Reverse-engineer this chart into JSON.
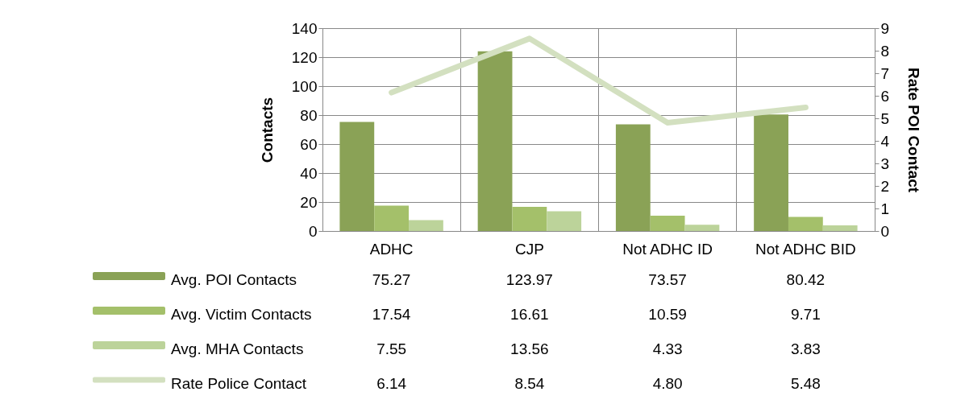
{
  "chart_data": {
    "type": "bar",
    "ylabel": "Contacts",
    "y2label": "Rate POI Contact",
    "categories": [
      "ADHC",
      "CJP",
      "Not ADHC ID",
      "Not ADHC BID"
    ],
    "series": [
      {
        "name": "Avg. POI Contacts",
        "color": "#8aa256",
        "values": [
          75.27,
          123.97,
          73.57,
          80.42
        ],
        "value_labels": [
          "75.27",
          "123.97",
          "73.57",
          "80.42"
        ]
      },
      {
        "name": "Avg. Victim Contacts",
        "color": "#a4c06a",
        "values": [
          17.54,
          16.61,
          10.59,
          9.71
        ],
        "value_labels": [
          "17.54",
          "16.61",
          "10.59",
          "9.71"
        ]
      },
      {
        "name": "Avg. MHA Contacts",
        "color": "#bcd39a",
        "values": [
          7.55,
          13.56,
          4.33,
          3.83
        ],
        "value_labels": [
          "7.55",
          "13.56",
          "4.33",
          "3.83"
        ]
      },
      {
        "name": "Rate Police Contact",
        "color": "#d3e0c0",
        "type": "line",
        "axis": "y2",
        "values": [
          6.14,
          8.54,
          4.8,
          5.48
        ],
        "value_labels": [
          "6.14",
          "8.54",
          "4.80",
          "5.48"
        ]
      }
    ],
    "ylim": [
      0,
      140
    ],
    "yticks": [
      0,
      20,
      40,
      60,
      80,
      100,
      120,
      140
    ],
    "y2lim": [
      0,
      9
    ],
    "y2ticks": [
      0,
      1,
      2,
      3,
      4,
      5,
      6,
      7,
      8,
      9
    ],
    "grid": true,
    "legend": "bottom"
  }
}
